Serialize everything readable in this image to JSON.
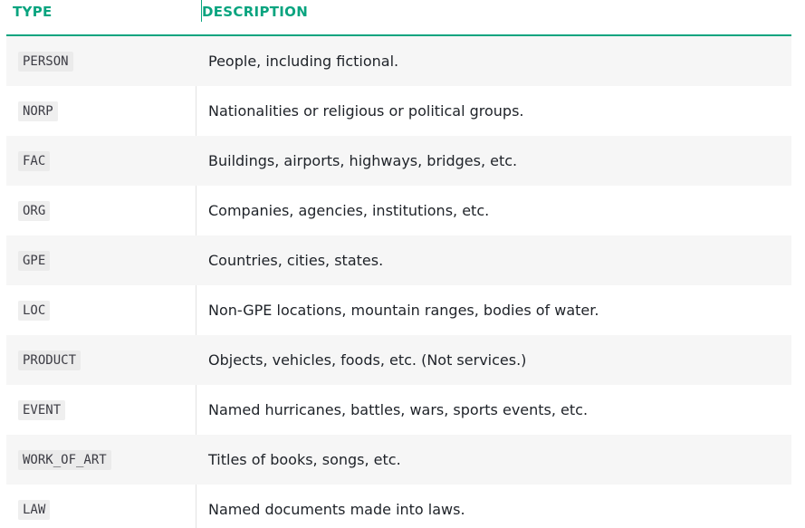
{
  "table": {
    "headers": {
      "type": "TYPE",
      "description": "DESCRIPTION"
    },
    "rows": [
      {
        "type": "PERSON",
        "description": "People, including fictional."
      },
      {
        "type": "NORP",
        "description": "Nationalities or religious or political groups."
      },
      {
        "type": "FAC",
        "description": "Buildings, airports, highways, bridges, etc."
      },
      {
        "type": "ORG",
        "description": "Companies, agencies, institutions, etc."
      },
      {
        "type": "GPE",
        "description": "Countries, cities, states."
      },
      {
        "type": "LOC",
        "description": "Non-GPE locations, mountain ranges, bodies of water."
      },
      {
        "type": "PRODUCT",
        "description": "Objects, vehicles, foods, etc. (Not services.)"
      },
      {
        "type": "EVENT",
        "description": "Named hurricanes, battles, wars, sports events, etc."
      },
      {
        "type": "WORK_OF_ART",
        "description": "Titles of books, songs, etc."
      },
      {
        "type": "LAW",
        "description": "Named documents made into laws."
      }
    ]
  },
  "colors": {
    "accent": "#09a47f",
    "row_shade": "#f6f6f6",
    "code_bg": "#efefef"
  }
}
